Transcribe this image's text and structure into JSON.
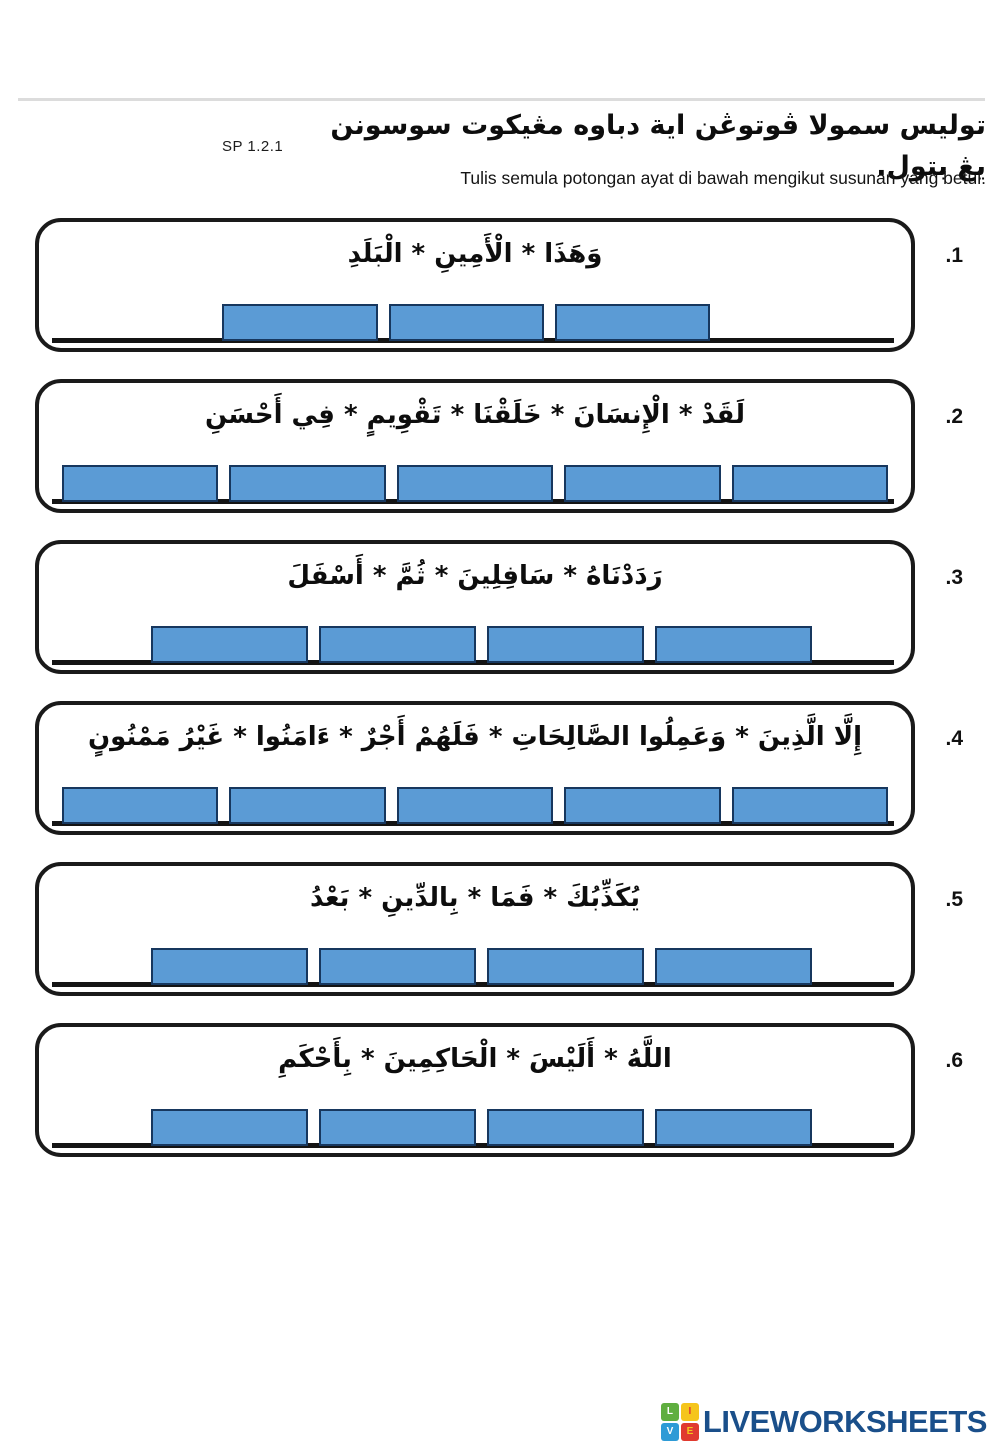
{
  "header": {
    "sp_code": "SP 1.2.1",
    "jawi_instruction": "توليس سمولا ڤوتوڠن اية دباوه مڠيكوت سوسونن يڠ بتول.",
    "malay_instruction": "Tulis semula potongan ayat di bawah mengikut susunan yang betul."
  },
  "worksheet": {
    "questions": [
      {
        "number": ".1",
        "ayah_fragments": "وَهَذَا * الْأَمِينِ * الْبَلَدِ",
        "blank_count": 3,
        "strip": "center"
      },
      {
        "number": ".2",
        "ayah_fragments": "لَقَدْ * الْإِنسَانَ * خَلَقْنَا * تَقْوِيمٍ * فِي أَحْسَنِ",
        "blank_count": 5,
        "strip": "full"
      },
      {
        "number": ".3",
        "ayah_fragments": "رَدَدْنَاهُ * سَافِلِينَ * ثُمَّ * أَسْفَلَ",
        "blank_count": 4,
        "strip": "wide"
      },
      {
        "number": ".4",
        "ayah_fragments": "إِلَّا الَّذِينَ * وَعَمِلُوا الصَّالِحَاتِ * فَلَهُمْ أَجْرٌ * ءَامَنُوا * غَيْرُ مَمْنُونٍ",
        "blank_count": 5,
        "strip": "full"
      },
      {
        "number": ".5",
        "ayah_fragments": "يُكَذِّبُكَ * فَمَا * بِالدِّينِ * بَعْدُ",
        "blank_count": 4,
        "strip": "wide"
      },
      {
        "number": ".6",
        "ayah_fragments": "اللَّهُ * أَلَيْسَ * الْحَاكِمِينَ * بِأَحْكَمِ",
        "blank_count": 4,
        "strip": "wide"
      }
    ]
  },
  "footer": {
    "brand": "LIVEWORKSHEETS",
    "logo_squares": [
      {
        "letter": "L",
        "bg": "#5FAE3F",
        "fg": "#FFFFFF"
      },
      {
        "letter": "I",
        "bg": "#F5C51C",
        "fg": "#E03A2F"
      },
      {
        "letter": "V",
        "bg": "#2E9BD6",
        "fg": "#FFFFFF"
      },
      {
        "letter": "E",
        "bg": "#E03A2F",
        "fg": "#F5C51C"
      }
    ]
  },
  "colors": {
    "answer_box_fill": "#5B9BD5",
    "answer_box_border": "#17375E",
    "brand_text": "#1A4F8A",
    "section_border": "#1A1A1A",
    "writing_line": "#141414",
    "top_divider": "#DCDCDC"
  }
}
